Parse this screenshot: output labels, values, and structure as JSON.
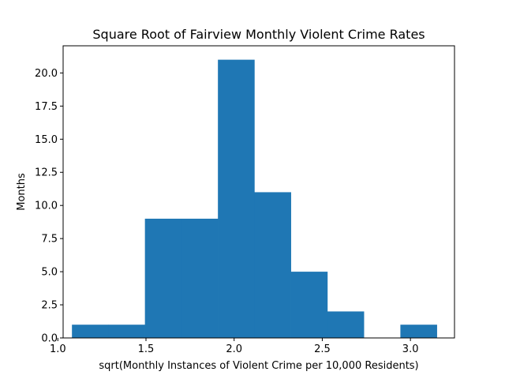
{
  "chart_data": {
    "type": "bar",
    "title": "Square Root of Fairview Monthly Violent Crime Rates",
    "xlabel": "sqrt(Monthly Instances of Violent Crime per 10,000 Residents)",
    "ylabel": "Months",
    "xlim": [
      1.03,
      3.25
    ],
    "ylim": [
      0,
      22.05
    ],
    "bin_edges": [
      1.08,
      1.287,
      1.494,
      1.701,
      1.908,
      2.115,
      2.322,
      2.529,
      2.736,
      2.943,
      3.15
    ],
    "counts": [
      1,
      1,
      9,
      9,
      21,
      11,
      5,
      2,
      0,
      1
    ],
    "bar_color": "#1f77b4",
    "xticks": [
      1.0,
      1.5,
      2.0,
      2.5,
      3.0
    ],
    "xtick_labels": [
      "1.0",
      "1.5",
      "2.0",
      "2.5",
      "3.0"
    ],
    "yticks": [
      0,
      2.5,
      5,
      7.5,
      10,
      12.5,
      15,
      17.5,
      20
    ],
    "ytick_labels": [
      "0.0",
      "2.5",
      "5.0",
      "7.5",
      "10.0",
      "12.5",
      "15.0",
      "17.5",
      "20.0"
    ],
    "grid": false,
    "legend": false
  }
}
